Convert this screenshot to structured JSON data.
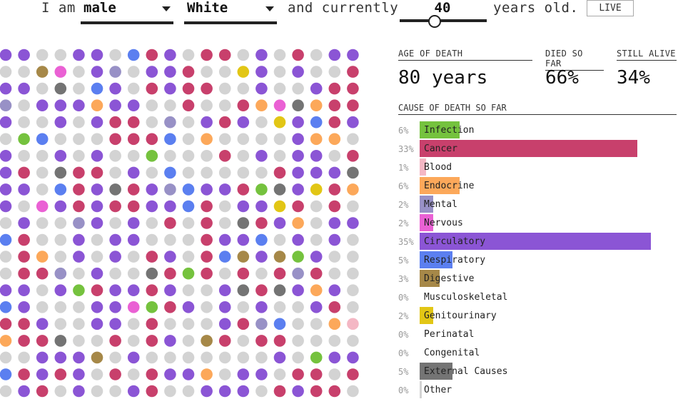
{
  "header": {
    "prefix": "I am",
    "sex_value": "male",
    "race_value": "White",
    "middle": "and currently",
    "age_value": "40",
    "suffix": "years old.",
    "live_label": "LIVE"
  },
  "stats": {
    "age_of_death_label": "AGE OF DEATH",
    "age_of_death_value": "80 years",
    "died_label": "DIED SO FAR",
    "died_value": "66%",
    "alive_label": "STILL ALIVE",
    "alive_value": "34%"
  },
  "causes_title": "CAUSE OF DEATH SO FAR",
  "colors": {
    "alive": "#d3d3d3",
    "infection": "#75c23e",
    "cancer": "#c8406c",
    "blood": "#f4b7c4",
    "endocrine": "#fca85a",
    "mental": "#9891c6",
    "nervous": "#ea61d4",
    "circulatory": "#8b55d5",
    "respiratory": "#5b7ff0",
    "digestive": "#a68848",
    "genitourinary": "#e2c615",
    "external": "#747474",
    "other": "#d3d3d3"
  },
  "chart_data": {
    "type": "bar",
    "title": "CAUSE OF DEATH SO FAR",
    "categories": [
      "Infection",
      "Cancer",
      "Blood",
      "Endocrine",
      "Mental",
      "Nervous",
      "Circulatory",
      "Respiratory",
      "Digestive",
      "Musculoskeletal",
      "Genitourinary",
      "Perinatal",
      "Congenital",
      "External Causes",
      "Other"
    ],
    "values": [
      6,
      33,
      1,
      6,
      2,
      2,
      35,
      5,
      3,
      0,
      2,
      0,
      0,
      5,
      0
    ],
    "value_labels": [
      "6%",
      "33%",
      "1%",
      "6%",
      "2%",
      "2%",
      "35%",
      "5%",
      "3%",
      "0%",
      "2%",
      "0%",
      "0%",
      "5%",
      "0%"
    ],
    "color_keys": [
      "infection",
      "cancer",
      "blood",
      "endocrine",
      "mental",
      "nervous",
      "circulatory",
      "respiratory",
      "digestive",
      "",
      "genitourinary",
      "",
      "",
      "external",
      "other"
    ],
    "xlim": [
      0,
      35
    ]
  },
  "dot_grid": {
    "type": "dot-matrix",
    "rows": 22,
    "cols": 20,
    "matrix": [
      "ccgcabcacbgbcbacbaab",
      "cachakcaacchacebbhbb",
      "bckbbcbcbcbbkcbbcbbb",
      "cbchbcbkgbbhcehbbkbb",
      "bbcbbcbbbbcbbbbbbccb",
      "cbcbbcbcbbbcbccbbbcb",
      "bcccbbkbbcbbbbbkcccb",
      "bbbbcbbbbacbbcbcbbbb",
      "bccbbcbbbbbbbbbbcbbb",
      "bbbbcbbbcbcbbbbbcbbb",
      "cbhbbcbbbccbbbbbbcbb",
      "bbbbbbbcbbbbbcbbbcbb",
      "bbbbbbbbbbbbbbbbbbbb",
      "cbbbcbcbbbcbbcbbbbbb",
      "bbbbccbcbbbbcbbbcbbb",
      "bbbkcbbbbbbbbbbbbbbb",
      "bbbbbbbbbbbbbbbbbbbb",
      "bbbbbbbbbbbbbbbbbbbb",
      "bbbbbbbbbbbbbbbbbbbb",
      "bbbbbbbbbbbbbbbbbbbb",
      "bbbbbbbbbbbbbbbbbbbb",
      "bbbbbbbbbbbbbbbbbbbb"
    ]
  }
}
